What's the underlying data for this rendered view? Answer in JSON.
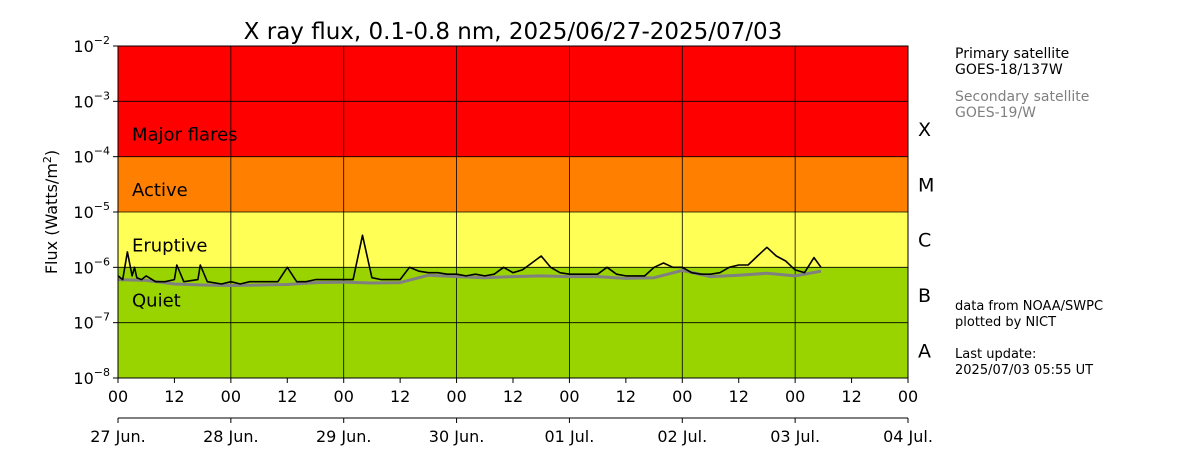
{
  "chart_data": {
    "type": "line",
    "title": "X ray flux, 0.1-0.8 nm, 2025/06/27-2025/07/03",
    "ylabel_main": "Flux (Watts/m",
    "ylabel_sup": "2",
    "ylabel_end": ")",
    "y_scale": "log",
    "ylim": [
      1e-08,
      0.01
    ],
    "y_ticks": [
      {
        "value": 1e-08,
        "base": "10",
        "exp": "−8"
      },
      {
        "value": 1e-07,
        "base": "10",
        "exp": "−7"
      },
      {
        "value": 1e-06,
        "base": "10",
        "exp": "−6"
      },
      {
        "value": 1e-05,
        "base": "10",
        "exp": "−5"
      },
      {
        "value": 0.0001,
        "base": "10",
        "exp": "−4"
      },
      {
        "value": 0.001,
        "base": "10",
        "exp": "−3"
      },
      {
        "value": 0.01,
        "base": "10",
        "exp": "−2"
      }
    ],
    "xlim": [
      "2025-06-27 00:00",
      "2025-07-04 00:00"
    ],
    "hour_ticks": [
      "00",
      "12",
      "00",
      "12",
      "00",
      "12",
      "00",
      "12",
      "00",
      "12",
      "00",
      "12",
      "00",
      "12",
      "00"
    ],
    "day_ticks": [
      "27 Jun.",
      "28 Jun.",
      "29 Jun.",
      "30 Jun.",
      "01 Jul.",
      "02 Jul.",
      "03 Jul.",
      "04 Jul."
    ],
    "grid": true,
    "bands": [
      {
        "label": "Major flares",
        "from": 0.0001,
        "to": 0.01,
        "color": "#ff0000"
      },
      {
        "label": "Active",
        "from": 1e-05,
        "to": 0.0001,
        "color": "#ff8000"
      },
      {
        "label": "Eruptive",
        "from": 1e-06,
        "to": 1e-05,
        "color": "#ffff55"
      },
      {
        "label": "Quiet",
        "from": 1e-08,
        "to": 1e-06,
        "color": "#99d400"
      }
    ],
    "classes": [
      {
        "letter": "X",
        "value": 0.000316
      },
      {
        "letter": "M",
        "value": 3.16e-05
      },
      {
        "letter": "C",
        "value": 3.16e-06
      },
      {
        "letter": "B",
        "value": 3.16e-07
      },
      {
        "letter": "A",
        "value": 3.16e-08
      }
    ],
    "series": [
      {
        "color": "#000000",
        "x": [
          "2025-06-27 00:00",
          "2025-06-27 01:00",
          "2025-06-27 02:00",
          "2025-06-27 03:00",
          "2025-06-27 03:30",
          "2025-06-27 04:00",
          "2025-06-27 05:00",
          "2025-06-27 06:00",
          "2025-06-27 08:00",
          "2025-06-27 10:00",
          "2025-06-27 12:00",
          "2025-06-27 12:30",
          "2025-06-27 14:00",
          "2025-06-27 17:00",
          "2025-06-27 17:30",
          "2025-06-27 19:00",
          "2025-06-27 22:00",
          "2025-06-28 00:00",
          "2025-06-28 02:00",
          "2025-06-28 04:00",
          "2025-06-28 06:00",
          "2025-06-28 08:00",
          "2025-06-28 10:00",
          "2025-06-28 12:00",
          "2025-06-28 14:00",
          "2025-06-28 16:00",
          "2025-06-28 18:00",
          "2025-06-28 20:00",
          "2025-06-28 22:00",
          "2025-06-29 00:00",
          "2025-06-29 02:00",
          "2025-06-29 04:00",
          "2025-06-29 06:00",
          "2025-06-29 08:00",
          "2025-06-29 10:00",
          "2025-06-29 12:00",
          "2025-06-29 14:00",
          "2025-06-29 16:00",
          "2025-06-29 18:00",
          "2025-06-29 20:00",
          "2025-06-29 22:00",
          "2025-06-30 00:00",
          "2025-06-30 02:00",
          "2025-06-30 04:00",
          "2025-06-30 06:00",
          "2025-06-30 08:00",
          "2025-06-30 10:00",
          "2025-06-30 12:00",
          "2025-06-30 14:00",
          "2025-06-30 16:00",
          "2025-06-30 18:00",
          "2025-06-30 20:00",
          "2025-06-30 22:00",
          "2025-07-01 00:00",
          "2025-07-01 02:00",
          "2025-07-01 04:00",
          "2025-07-01 06:00",
          "2025-07-01 08:00",
          "2025-07-01 10:00",
          "2025-07-01 12:00",
          "2025-07-01 14:00",
          "2025-07-01 16:00",
          "2025-07-01 18:00",
          "2025-07-01 20:00",
          "2025-07-01 22:00",
          "2025-07-02 00:00",
          "2025-07-02 02:00",
          "2025-07-02 04:00",
          "2025-07-02 06:00",
          "2025-07-02 08:00",
          "2025-07-02 10:00",
          "2025-07-02 12:00",
          "2025-07-02 14:00",
          "2025-07-02 16:00",
          "2025-07-02 18:00",
          "2025-07-02 20:00",
          "2025-07-02 22:00",
          "2025-07-03 00:00",
          "2025-07-03 02:00",
          "2025-07-03 04:00",
          "2025-07-03 05:30"
        ],
        "values": [
          7e-07,
          6e-07,
          1.9e-06,
          7e-07,
          1e-06,
          6.5e-07,
          6e-07,
          7e-07,
          5.5e-07,
          5.5e-07,
          6e-07,
          1.1e-06,
          5.5e-07,
          6e-07,
          1.1e-06,
          5.5e-07,
          5e-07,
          5.5e-07,
          5e-07,
          5.5e-07,
          5.5e-07,
          5.5e-07,
          5.5e-07,
          1e-06,
          5.5e-07,
          5.5e-07,
          6e-07,
          6e-07,
          6e-07,
          6e-07,
          6e-07,
          3.8e-06,
          6.5e-07,
          6e-07,
          6e-07,
          6e-07,
          1e-06,
          8.5e-07,
          8e-07,
          8e-07,
          7.5e-07,
          7.5e-07,
          7e-07,
          7.5e-07,
          7e-07,
          7.5e-07,
          1e-06,
          8e-07,
          9e-07,
          1.2e-06,
          1.6e-06,
          1e-06,
          8e-07,
          7.5e-07,
          7.5e-07,
          7.5e-07,
          7.5e-07,
          1e-06,
          7.5e-07,
          7e-07,
          7e-07,
          7e-07,
          1e-06,
          1.2e-06,
          1e-06,
          1e-06,
          8e-07,
          7.5e-07,
          7.5e-07,
          8e-07,
          1e-06,
          1.1e-06,
          1.1e-06,
          1.6e-06,
          2.3e-06,
          1.6e-06,
          1.3e-06,
          9e-07,
          8e-07,
          1.5e-06,
          1e-06
        ]
      },
      {
        "color": "#808080",
        "x": [
          "2025-06-27 00:00",
          "2025-06-27 06:00",
          "2025-06-27 12:00",
          "2025-06-27 18:00",
          "2025-06-28 00:00",
          "2025-06-28 06:00",
          "2025-06-28 12:00",
          "2025-06-28 18:00",
          "2025-06-29 00:00",
          "2025-06-29 06:00",
          "2025-06-29 12:00",
          "2025-06-29 18:00",
          "2025-06-30 00:00",
          "2025-06-30 06:00",
          "2025-06-30 12:00",
          "2025-06-30 18:00",
          "2025-07-01 00:00",
          "2025-07-01 06:00",
          "2025-07-01 12:00",
          "2025-07-01 18:00",
          "2025-07-02 00:00",
          "2025-07-02 06:00",
          "2025-07-02 12:00",
          "2025-07-02 18:00",
          "2025-07-03 00:00",
          "2025-07-03 05:30"
        ],
        "values": [
          6e-07,
          5.8e-07,
          5e-07,
          4.8e-07,
          4.7e-07,
          4.8e-07,
          4.9e-07,
          5.3e-07,
          5.4e-07,
          5.2e-07,
          5.3e-07,
          7.2e-07,
          6.8e-07,
          6.5e-07,
          6.8e-07,
          7e-07,
          6.8e-07,
          6.8e-07,
          6.3e-07,
          6.5e-07,
          8.8e-07,
          6.8e-07,
          7.2e-07,
          7.8e-07,
          7e-07,
          8.5e-07
        ]
      }
    ]
  },
  "legend": {
    "primary_title": "Primary satellite",
    "primary_name": "GOES-18/137W",
    "secondary_title": "Secondary satellite",
    "secondary_name": "GOES-19/W"
  },
  "credits": {
    "source": "data from NOAA/SWPC",
    "plotted": "plotted by NICT",
    "update_label": "Last update:",
    "update_time": "2025/07/03 05:55 UT"
  },
  "colors": {
    "primary": "#000000",
    "secondary": "#808080",
    "grid": "#000000"
  }
}
